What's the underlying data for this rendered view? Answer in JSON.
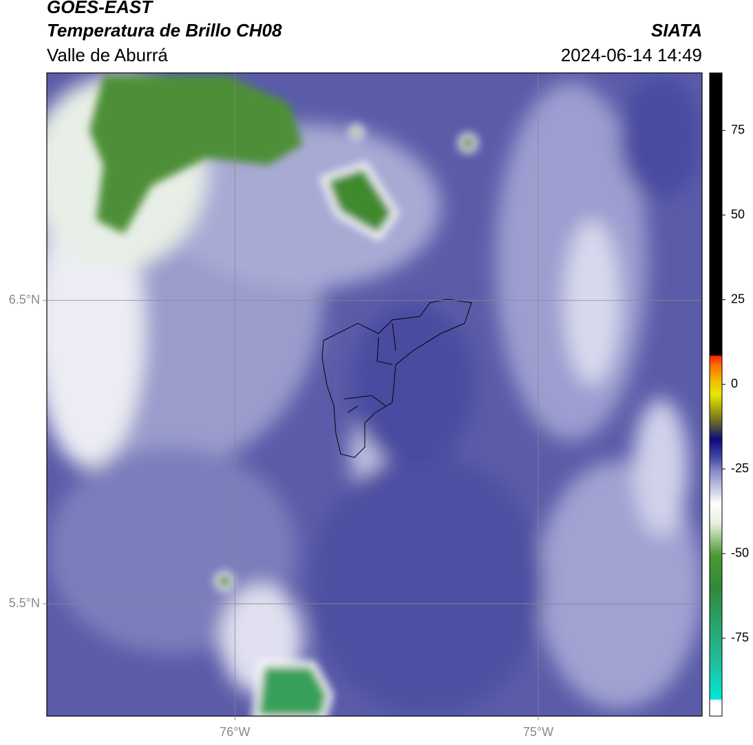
{
  "header": {
    "title": "GOES-EAST",
    "subtitle": "Temperatura de Brillo CH08",
    "region": "Valle de Aburrá",
    "source": "SIATA",
    "datetime": "2024-06-14 14:49"
  },
  "map": {
    "xlim": [
      -76.62,
      -74.46
    ],
    "ylim": [
      5.13,
      7.25
    ],
    "xticks": [
      {
        "value": -76,
        "label": "76°W"
      },
      {
        "value": -75,
        "label": "75°W"
      }
    ],
    "yticks": [
      {
        "value": 6.5,
        "label": "6.5°N"
      },
      {
        "value": 5.5,
        "label": "5.5°N"
      }
    ]
  },
  "colorbar": {
    "lim": [
      -98,
      92
    ],
    "ticks": [
      75,
      50,
      25,
      0,
      -25,
      -50,
      -75
    ]
  }
}
